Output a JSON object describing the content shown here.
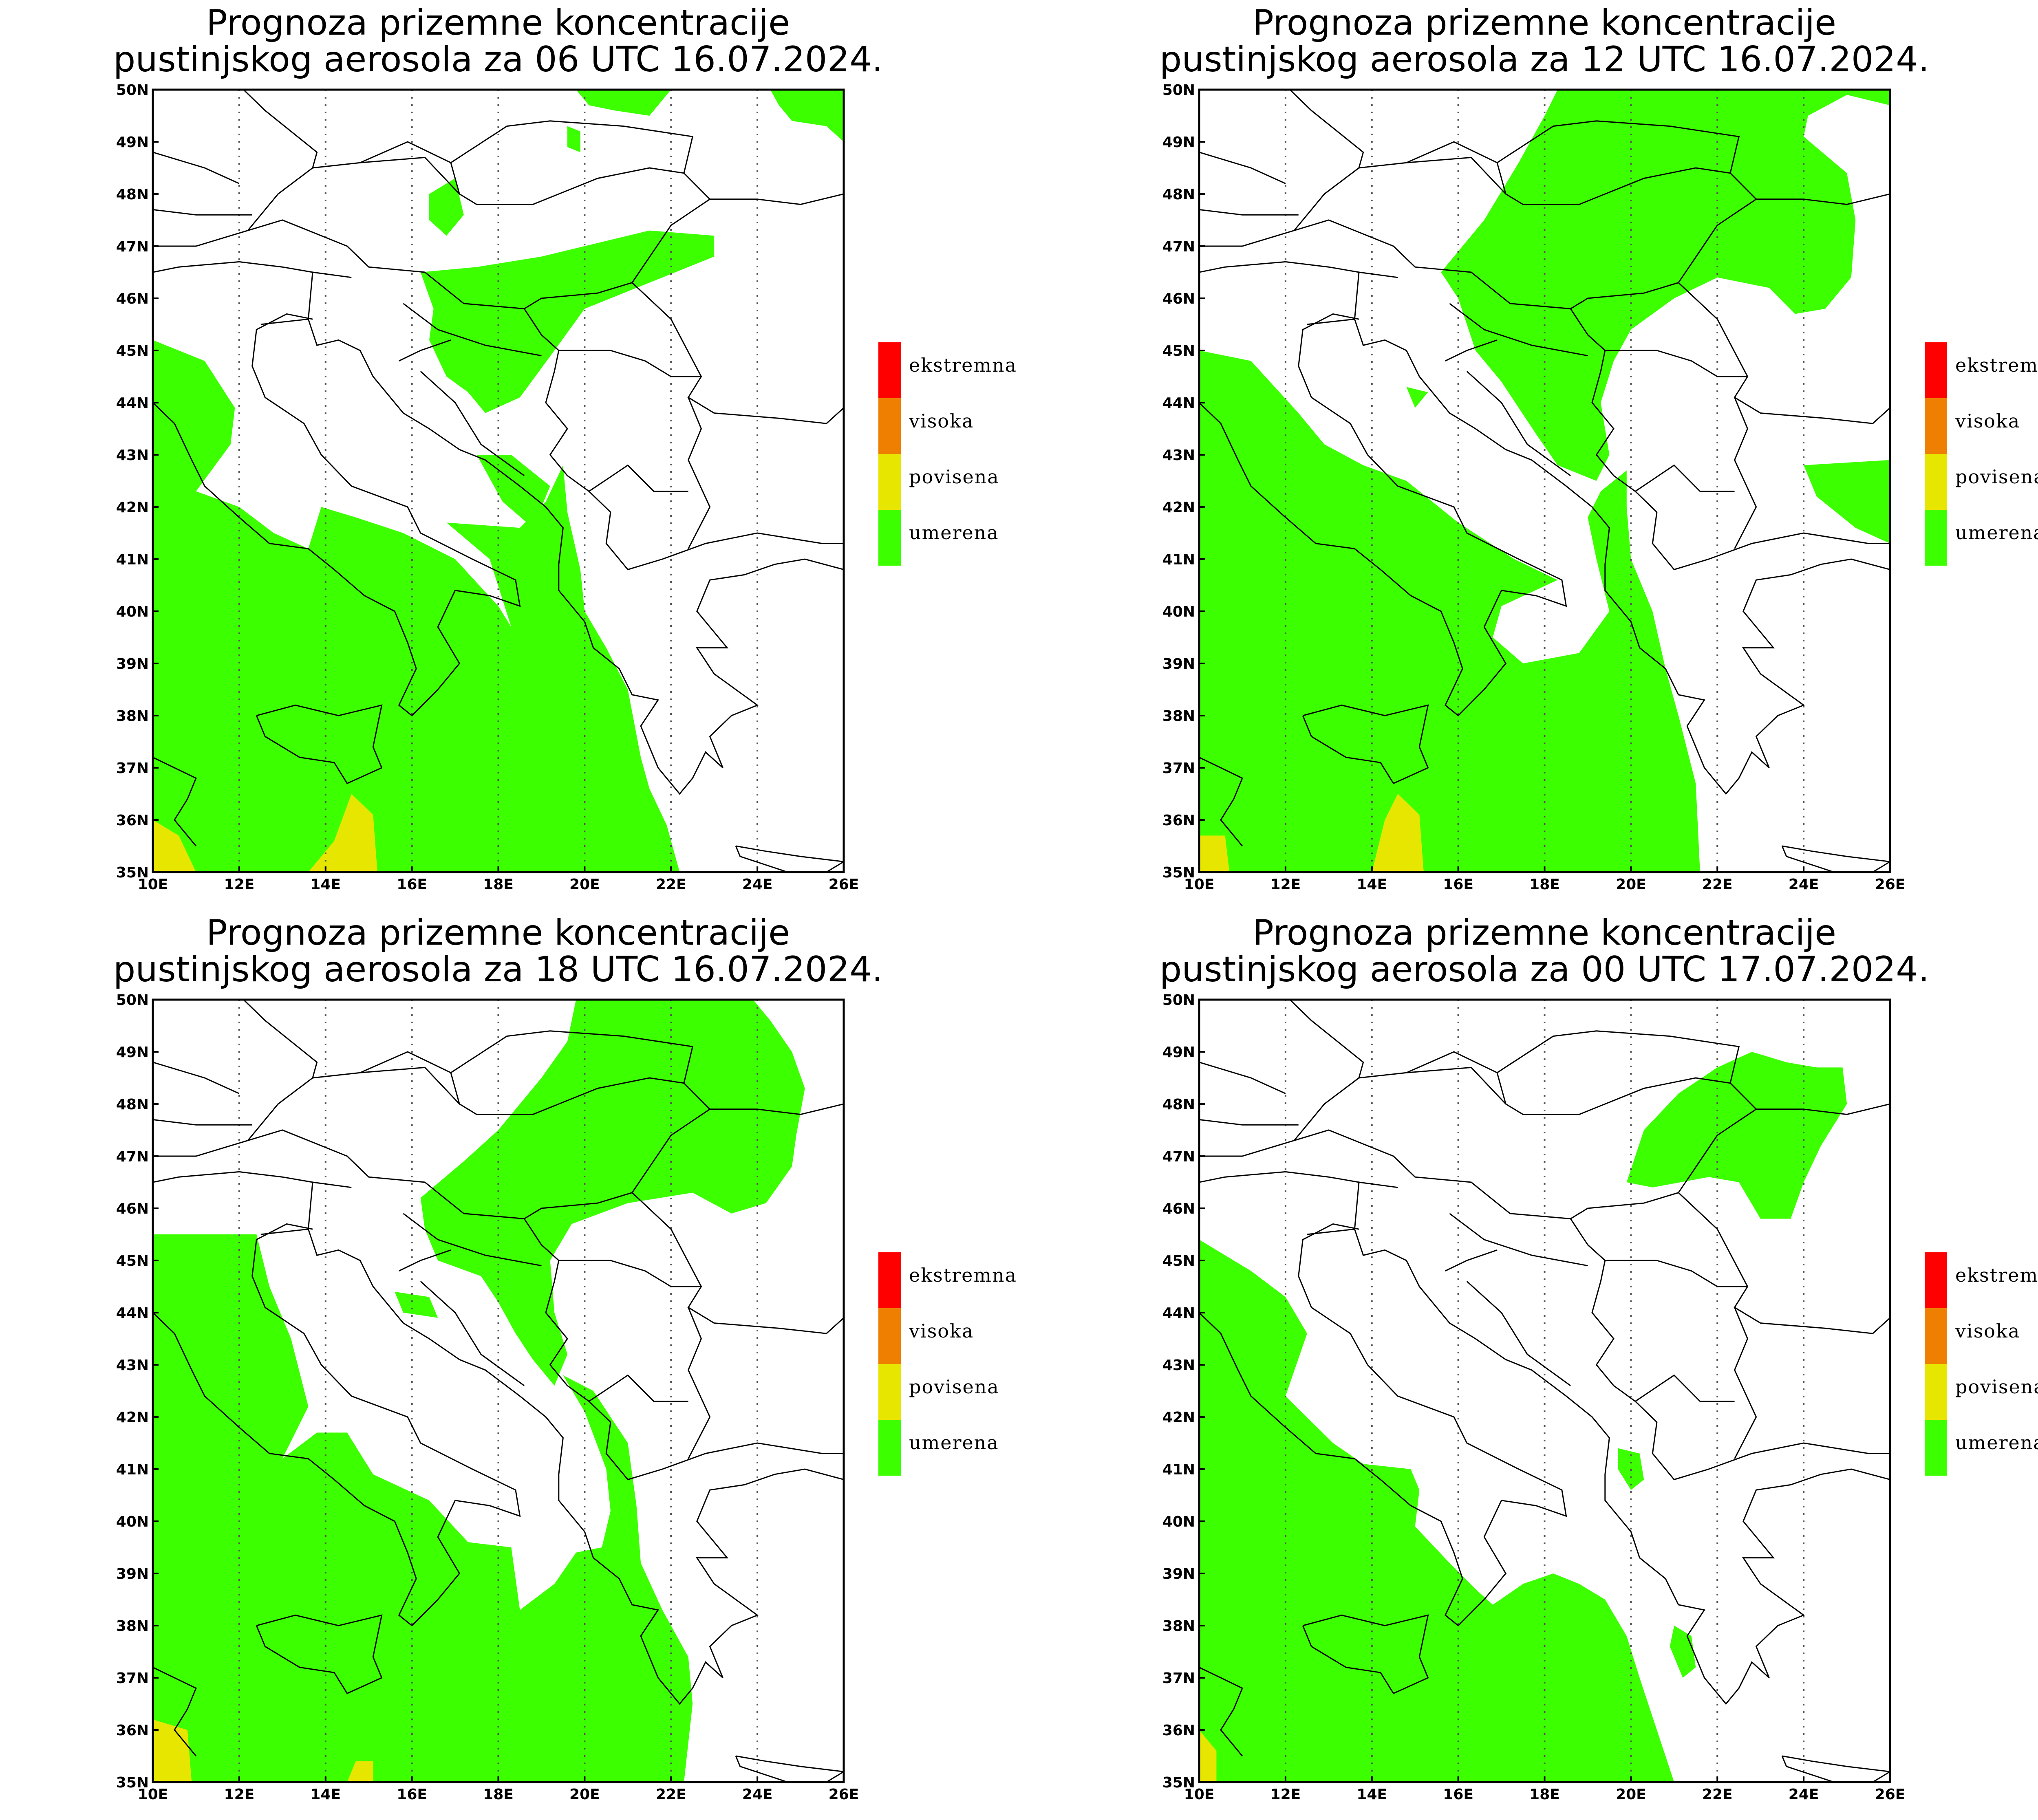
{
  "panels": [
    {
      "title_line1": "Prognoza prizemne koncentracije",
      "title_line2": "pustinjskog aerosola za 06 UTC 16.07.2024."
    },
    {
      "title_line1": "Prognoza prizemne koncentracije",
      "title_line2": "pustinjskog aerosola za 12 UTC 16.07.2024."
    },
    {
      "title_line1": "Prognoza prizemne koncentracije",
      "title_line2": "pustinjskog aerosola za 18 UTC 16.07.2024."
    },
    {
      "title_line1": "Prognoza prizemne koncentracije",
      "title_line2": "pustinjskog aerosola za 00 UTC 17.07.2024."
    }
  ],
  "axes": {
    "lon_ticks": [
      "10E",
      "12E",
      "14E",
      "16E",
      "18E",
      "20E",
      "22E",
      "24E",
      "26E"
    ],
    "lat_ticks": [
      "35N",
      "36N",
      "37N",
      "38N",
      "39N",
      "40N",
      "41N",
      "42N",
      "43N",
      "44N",
      "45N",
      "46N",
      "47N",
      "48N",
      "49N",
      "50N"
    ]
  },
  "legend": [
    {
      "label": "ekstremna",
      "color": "#ff0000"
    },
    {
      "label": "visoka",
      "color": "#ef7f00"
    },
    {
      "label": "povisena",
      "color": "#e6e600"
    },
    {
      "label": "umerena",
      "color": "#3cff00"
    }
  ],
  "colors": {
    "umerena": "#3cff00",
    "povisena": "#e6e600"
  }
}
